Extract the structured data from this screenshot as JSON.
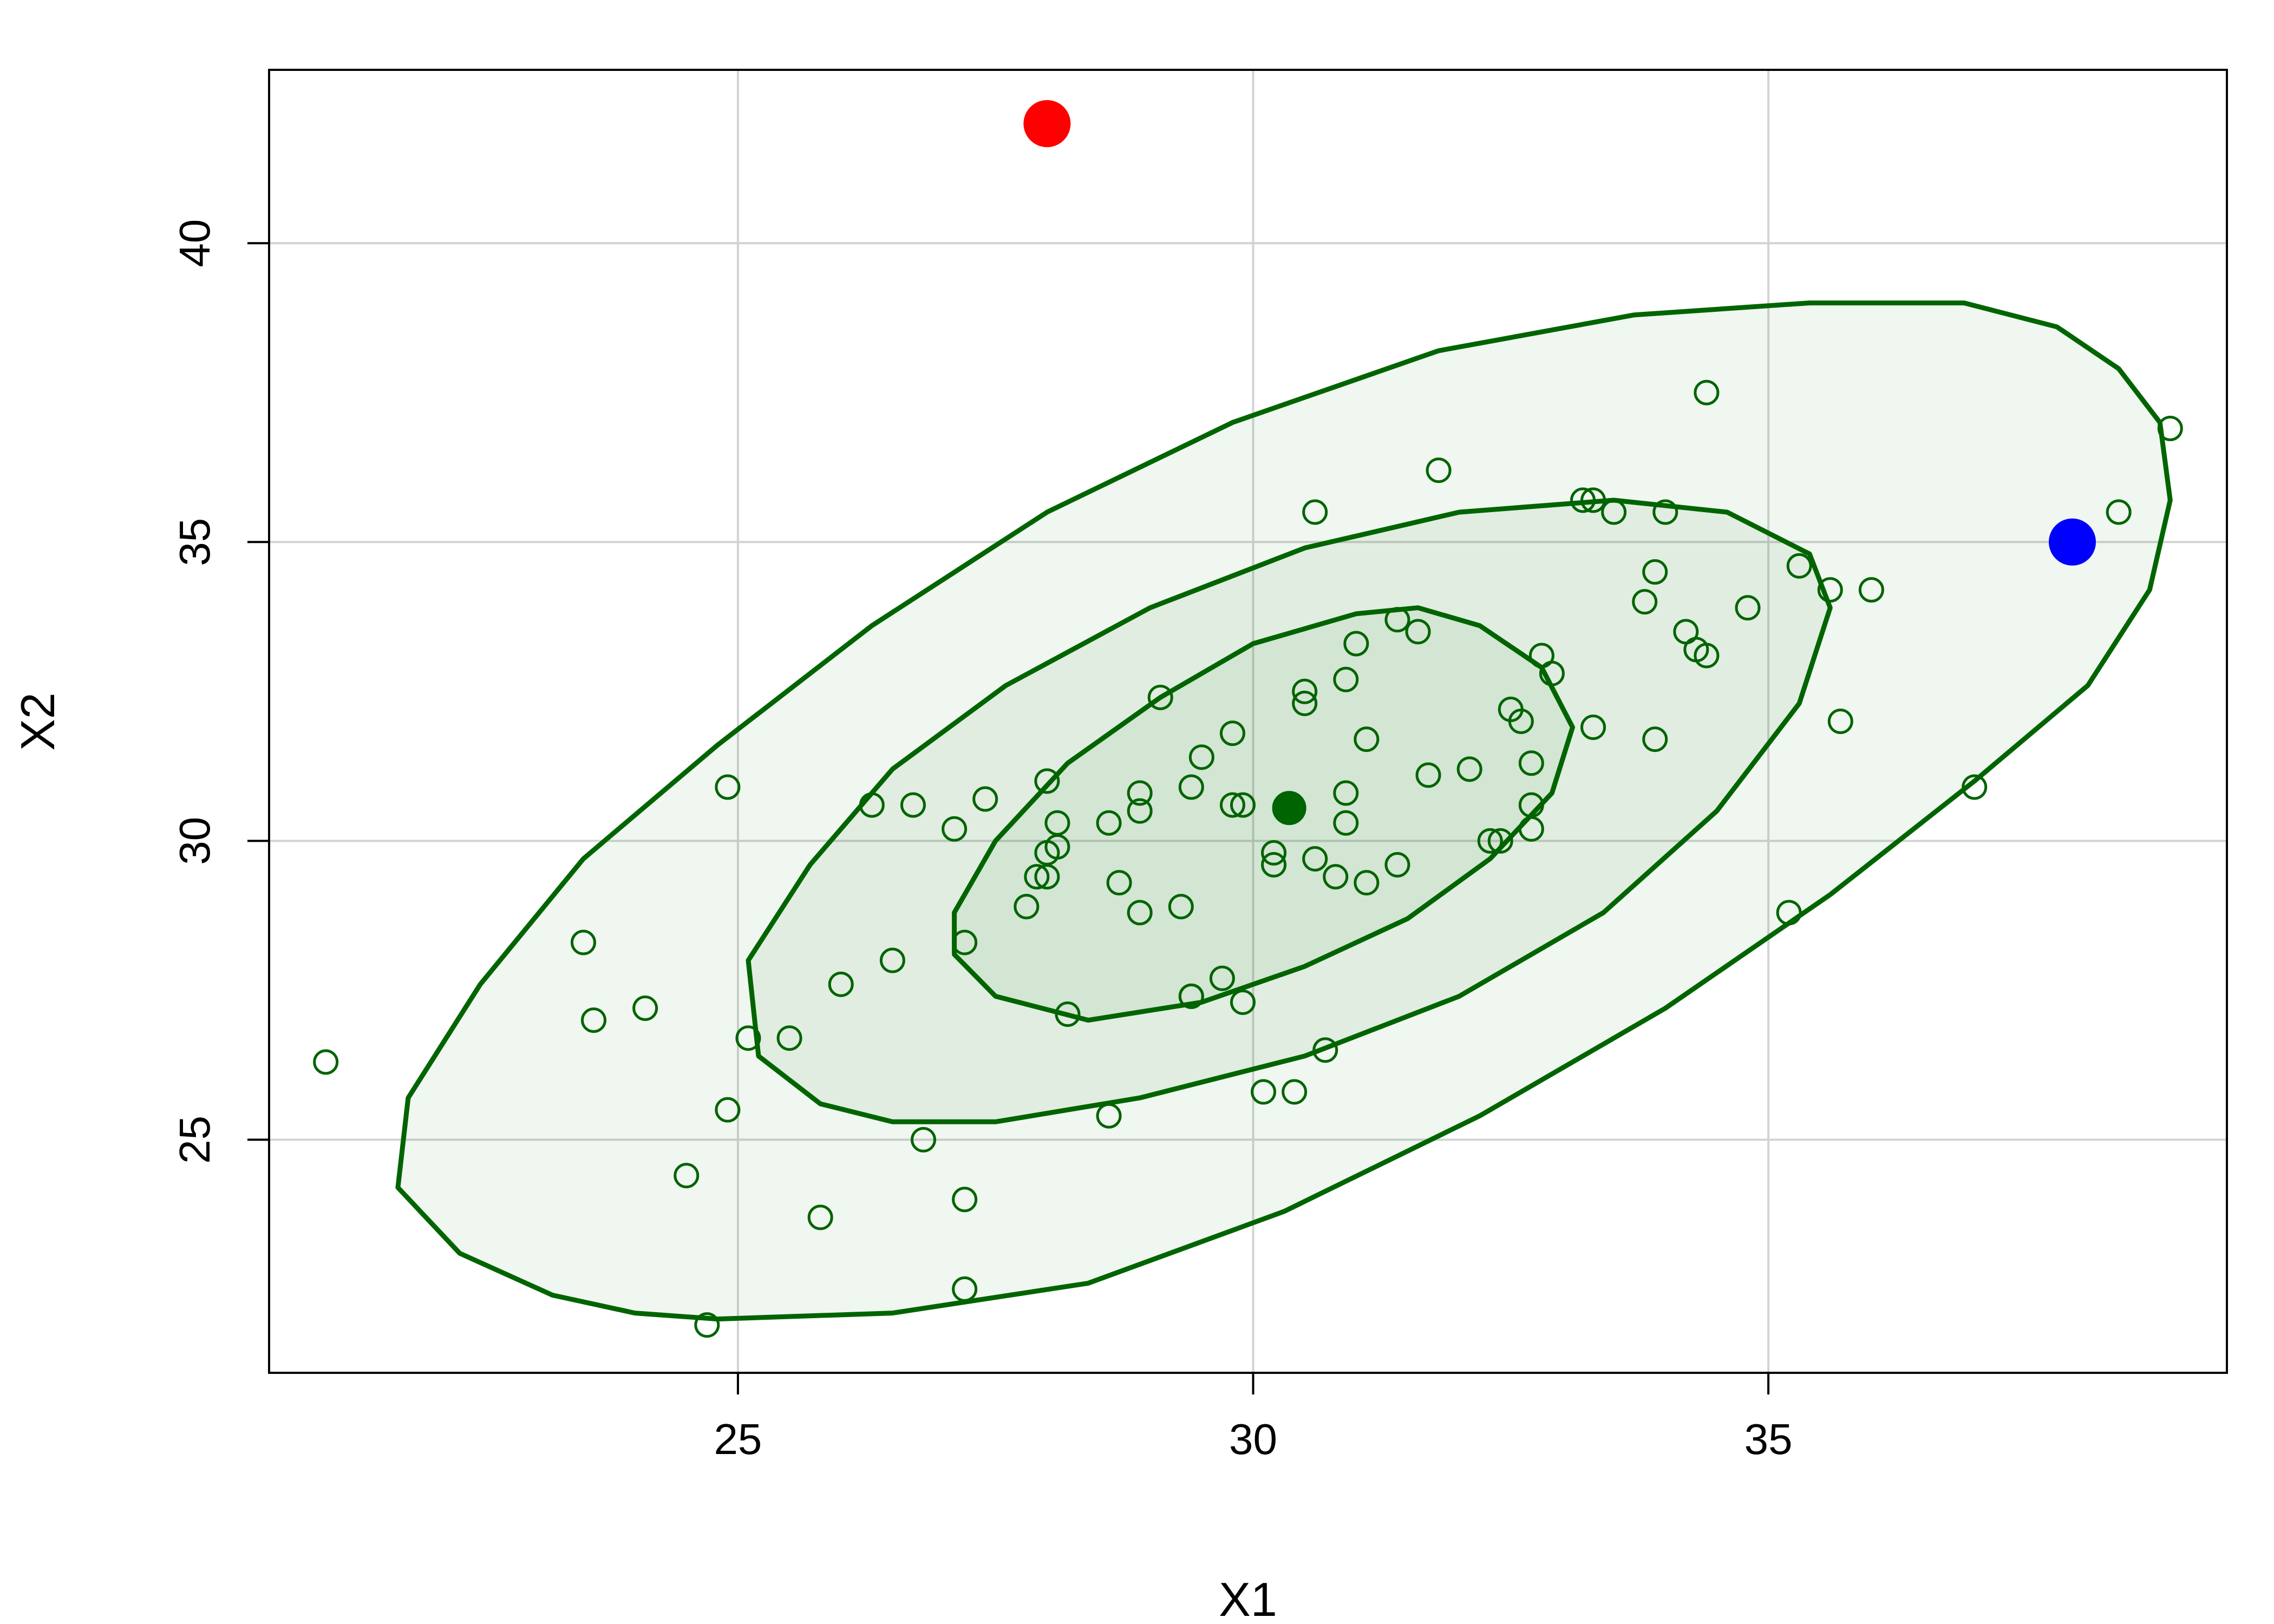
{
  "chart_data": {
    "type": "scatter",
    "xlabel": "X1",
    "ylabel": "X2",
    "xlim": [
      20.45,
      39.45
    ],
    "ylim": [
      21.1,
      42.9
    ],
    "x_ticks": [
      25,
      30,
      35
    ],
    "y_ticks": [
      25,
      30,
      35,
      40
    ],
    "x_tick_labels": [
      "25",
      "30",
      "35"
    ],
    "y_tick_labels": [
      "25",
      "30",
      "35",
      "40"
    ],
    "grid": true,
    "colors": {
      "points": "#006400",
      "ellipse_stroke": "#006400",
      "ellipse_fill": "#006400",
      "highlight_red": "#ff0000",
      "highlight_blue": "#0000ff",
      "grid": "#d3d3d3"
    },
    "confidence_ellipses": [
      {
        "level": "inner",
        "center": [
          30.35,
          30.55
        ],
        "fill_opacity": 0.06,
        "outline": [
          [
            28.4,
            27.0
          ],
          [
            29.5,
            27.3
          ],
          [
            30.5,
            27.9
          ],
          [
            31.5,
            28.7
          ],
          [
            32.3,
            29.7
          ],
          [
            32.9,
            30.8
          ],
          [
            33.1,
            31.9
          ],
          [
            32.8,
            32.9
          ],
          [
            32.2,
            33.6
          ],
          [
            31.6,
            33.9
          ],
          [
            31.0,
            33.8
          ],
          [
            30.0,
            33.3
          ],
          [
            29.1,
            32.4
          ],
          [
            28.2,
            31.3
          ],
          [
            27.5,
            30.0
          ],
          [
            27.1,
            28.8
          ],
          [
            27.1,
            28.1
          ],
          [
            27.5,
            27.4
          ]
        ]
      },
      {
        "level": "middle",
        "center": [
          30.35,
          30.55
        ],
        "fill_opacity": 0.06,
        "outline": [
          [
            27.5,
            25.3
          ],
          [
            28.9,
            25.7
          ],
          [
            30.5,
            26.4
          ],
          [
            32.0,
            27.4
          ],
          [
            33.4,
            28.8
          ],
          [
            34.5,
            30.5
          ],
          [
            35.3,
            32.3
          ],
          [
            35.6,
            33.9
          ],
          [
            35.4,
            34.8
          ],
          [
            34.6,
            35.5
          ],
          [
            33.5,
            35.7
          ],
          [
            32.0,
            35.5
          ],
          [
            30.5,
            34.9
          ],
          [
            29.0,
            33.9
          ],
          [
            27.6,
            32.6
          ],
          [
            26.5,
            31.2
          ],
          [
            25.7,
            29.6
          ],
          [
            25.1,
            28.0
          ],
          [
            25.2,
            26.4
          ],
          [
            25.8,
            25.6
          ],
          [
            26.5,
            25.3
          ]
        ]
      },
      {
        "level": "outer",
        "center": [
          30.35,
          30.55
        ],
        "fill_opacity": 0.06,
        "outline": [
          [
            24.8,
            22.0
          ],
          [
            26.5,
            22.1
          ],
          [
            28.4,
            22.6
          ],
          [
            30.3,
            23.8
          ],
          [
            32.2,
            25.4
          ],
          [
            34.0,
            27.2
          ],
          [
            35.6,
            29.1
          ],
          [
            37.0,
            31.0
          ],
          [
            38.1,
            32.6
          ],
          [
            38.7,
            34.2
          ],
          [
            38.9,
            35.7
          ],
          [
            38.8,
            37.0
          ],
          [
            38.4,
            37.9
          ],
          [
            37.8,
            38.6
          ],
          [
            36.9,
            39.0
          ],
          [
            35.4,
            39.0
          ],
          [
            33.7,
            38.8
          ],
          [
            31.8,
            38.2
          ],
          [
            29.8,
            37.0
          ],
          [
            28.0,
            35.5
          ],
          [
            26.3,
            33.6
          ],
          [
            24.8,
            31.6
          ],
          [
            23.5,
            29.7
          ],
          [
            22.5,
            27.6
          ],
          [
            21.8,
            25.7
          ],
          [
            21.7,
            24.2
          ],
          [
            22.3,
            23.1
          ],
          [
            23.2,
            22.4
          ],
          [
            24.0,
            22.1
          ]
        ]
      }
    ],
    "points": [
      [
        21.0,
        26.3
      ],
      [
        23.5,
        28.3
      ],
      [
        23.6,
        27.0
      ],
      [
        24.1,
        27.2
      ],
      [
        24.5,
        24.4
      ],
      [
        24.7,
        21.9
      ],
      [
        24.9,
        25.5
      ],
      [
        24.9,
        30.9
      ],
      [
        25.1,
        26.7
      ],
      [
        25.5,
        26.7
      ],
      [
        25.8,
        23.7
      ],
      [
        26.0,
        27.6
      ],
      [
        26.3,
        30.6
      ],
      [
        26.5,
        28.0
      ],
      [
        26.7,
        30.6
      ],
      [
        26.8,
        25.0
      ],
      [
        27.1,
        30.2
      ],
      [
        27.2,
        28.3
      ],
      [
        27.2,
        24.0
      ],
      [
        27.2,
        22.5
      ],
      [
        27.4,
        30.7
      ],
      [
        27.8,
        28.9
      ],
      [
        27.9,
        29.4
      ],
      [
        28.0,
        29.8
      ],
      [
        28.0,
        31.0
      ],
      [
        28.0,
        29.4
      ],
      [
        28.1,
        29.9
      ],
      [
        28.1,
        30.3
      ],
      [
        28.2,
        27.1
      ],
      [
        28.6,
        25.4
      ],
      [
        28.6,
        30.3
      ],
      [
        28.7,
        29.3
      ],
      [
        28.9,
        28.8
      ],
      [
        28.9,
        30.8
      ],
      [
        28.9,
        30.5
      ],
      [
        29.1,
        32.4
      ],
      [
        29.3,
        28.9
      ],
      [
        29.4,
        27.4
      ],
      [
        29.4,
        27.4
      ],
      [
        29.4,
        30.9
      ],
      [
        29.5,
        31.4
      ],
      [
        29.7,
        27.7
      ],
      [
        29.8,
        30.6
      ],
      [
        29.8,
        31.8
      ],
      [
        29.9,
        27.3
      ],
      [
        29.9,
        30.6
      ],
      [
        30.1,
        25.8
      ],
      [
        30.2,
        29.6
      ],
      [
        30.2,
        29.8
      ],
      [
        30.4,
        25.8
      ],
      [
        30.5,
        32.5
      ],
      [
        30.5,
        32.3
      ],
      [
        30.6,
        29.7
      ],
      [
        30.6,
        35.5
      ],
      [
        30.7,
        26.5
      ],
      [
        30.8,
        29.4
      ],
      [
        30.9,
        32.7
      ],
      [
        30.9,
        30.8
      ],
      [
        30.9,
        30.3
      ],
      [
        31.0,
        33.3
      ],
      [
        31.1,
        31.7
      ],
      [
        31.1,
        29.3
      ],
      [
        31.4,
        29.6
      ],
      [
        31.4,
        33.7
      ],
      [
        31.6,
        33.5
      ],
      [
        31.7,
        31.1
      ],
      [
        31.8,
        36.2
      ],
      [
        32.1,
        31.2
      ],
      [
        32.3,
        30.0
      ],
      [
        32.4,
        30.0
      ],
      [
        32.5,
        32.2
      ],
      [
        32.6,
        32.0
      ],
      [
        32.7,
        30.6
      ],
      [
        32.7,
        30.2
      ],
      [
        32.7,
        31.3
      ],
      [
        32.8,
        33.1
      ],
      [
        32.9,
        32.8
      ],
      [
        33.2,
        35.7
      ],
      [
        33.3,
        35.7
      ],
      [
        33.3,
        31.9
      ],
      [
        33.5,
        35.5
      ],
      [
        33.8,
        34.0
      ],
      [
        33.9,
        31.7
      ],
      [
        33.9,
        34.5
      ],
      [
        34.0,
        35.5
      ],
      [
        34.2,
        33.5
      ],
      [
        34.3,
        33.2
      ],
      [
        34.4,
        33.1
      ],
      [
        34.4,
        37.5
      ],
      [
        34.8,
        33.9
      ],
      [
        35.2,
        28.8
      ],
      [
        35.3,
        34.6
      ],
      [
        35.6,
        34.2
      ],
      [
        35.7,
        32.0
      ],
      [
        36.0,
        34.2
      ],
      [
        37.0,
        30.9
      ],
      [
        38.4,
        35.5
      ],
      [
        38.9,
        36.9
      ]
    ],
    "special_points": [
      {
        "role": "center",
        "x": 30.35,
        "y": 30.55,
        "color": "#006400"
      },
      {
        "role": "red-outlier",
        "x": 28.0,
        "y": 42.0,
        "color": "#ff0000"
      },
      {
        "role": "blue-outlier",
        "x": 37.95,
        "y": 35.0,
        "color": "#0000ff"
      }
    ]
  }
}
